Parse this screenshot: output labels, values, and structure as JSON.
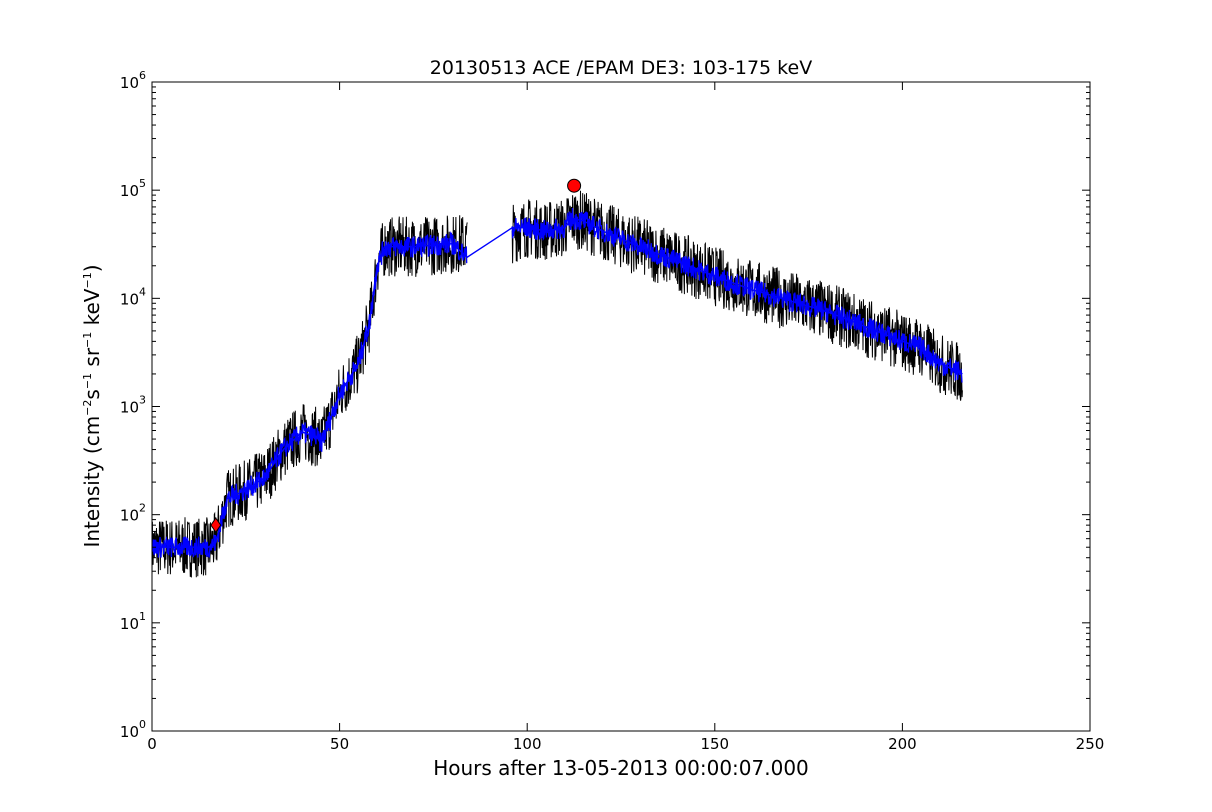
{
  "chart_data": {
    "type": "line",
    "title": "20130513 ACE /EPAM DE3: 103-175 keV",
    "xlabel": "Hours after 13-05-2013 00:00:07.000",
    "ylabel": {
      "prefix": "Intensity (cm",
      "exp1": "−2",
      "mid1": "s",
      "exp2": "−1",
      "mid2": " sr",
      "exp3": "−1",
      "mid3": " keV",
      "exp4": "−1",
      "suffix": ")"
    },
    "xlim": [
      0,
      250
    ],
    "ylim": [
      1,
      1000000
    ],
    "yscale": "log",
    "grid": false,
    "x_ticks": [
      {
        "value": 0,
        "label": "0"
      },
      {
        "value": 50,
        "label": "50"
      },
      {
        "value": 100,
        "label": "100"
      },
      {
        "value": 150,
        "label": "150"
      },
      {
        "value": 200,
        "label": "200"
      },
      {
        "value": 250,
        "label": "250"
      }
    ],
    "y_ticks": [
      {
        "value": 1,
        "base": "10",
        "exp": "0"
      },
      {
        "value": 10,
        "base": "10",
        "exp": "1"
      },
      {
        "value": 100,
        "base": "10",
        "exp": "2"
      },
      {
        "value": 1000,
        "base": "10",
        "exp": "3"
      },
      {
        "value": 10000,
        "base": "10",
        "exp": "4"
      },
      {
        "value": 100000,
        "base": "10",
        "exp": "5"
      },
      {
        "value": 1000000,
        "base": "10",
        "exp": "6"
      }
    ],
    "series": [
      {
        "role": "raw intensity (black)",
        "color": "#000000",
        "x": [
          0,
          5,
          10,
          15,
          17,
          20,
          25,
          30,
          35,
          40,
          44,
          45,
          50,
          55,
          58,
          60,
          62,
          65,
          70,
          75,
          80,
          84
        ],
        "y": [
          50,
          50,
          50,
          50,
          55,
          140,
          170,
          220,
          400,
          580,
          520,
          450,
          1300,
          2500,
          6000,
          20000,
          30000,
          30000,
          30000,
          31000,
          32000,
          32000
        ]
      },
      {
        "role": "raw intensity after gap (black)",
        "color": "#000000",
        "x": [
          96,
          100,
          105,
          110,
          112,
          115,
          120,
          130,
          140,
          150,
          160,
          170,
          180,
          190,
          200,
          205,
          210,
          215,
          216
        ],
        "y": [
          40000,
          45000,
          42000,
          45000,
          55000,
          52000,
          42000,
          30000,
          22000,
          16000,
          12000,
          9500,
          7500,
          5500,
          4000,
          3500,
          2500,
          2100,
          2000
        ]
      },
      {
        "role": "smoothed intensity (blue)",
        "color": "#0000ff",
        "x": [
          0,
          5,
          10,
          15,
          17,
          20,
          25,
          30,
          35,
          40,
          44,
          45,
          50,
          55,
          58,
          60,
          62,
          65,
          70,
          75,
          80,
          84,
          96,
          100,
          105,
          110,
          112,
          115,
          120,
          130,
          140,
          150,
          160,
          170,
          180,
          190,
          200,
          205,
          210,
          215,
          216
        ],
        "y": [
          50,
          50,
          50,
          50,
          55,
          140,
          170,
          220,
          400,
          580,
          520,
          450,
          1300,
          2500,
          6000,
          20000,
          30000,
          30000,
          30000,
          31000,
          32000,
          24000,
          45000,
          45000,
          42000,
          45000,
          55000,
          52000,
          42000,
          30000,
          22000,
          16000,
          12000,
          9500,
          7500,
          5500,
          4000,
          3500,
          2500,
          2100,
          2000
        ]
      }
    ],
    "markers": [
      {
        "role": "onset",
        "shape": "diamond",
        "color": "#ff0000",
        "x": 17,
        "y": 80
      },
      {
        "role": "peak",
        "shape": "circle",
        "color": "#ff0000",
        "x": 112.5,
        "y": 110000
      }
    ]
  }
}
